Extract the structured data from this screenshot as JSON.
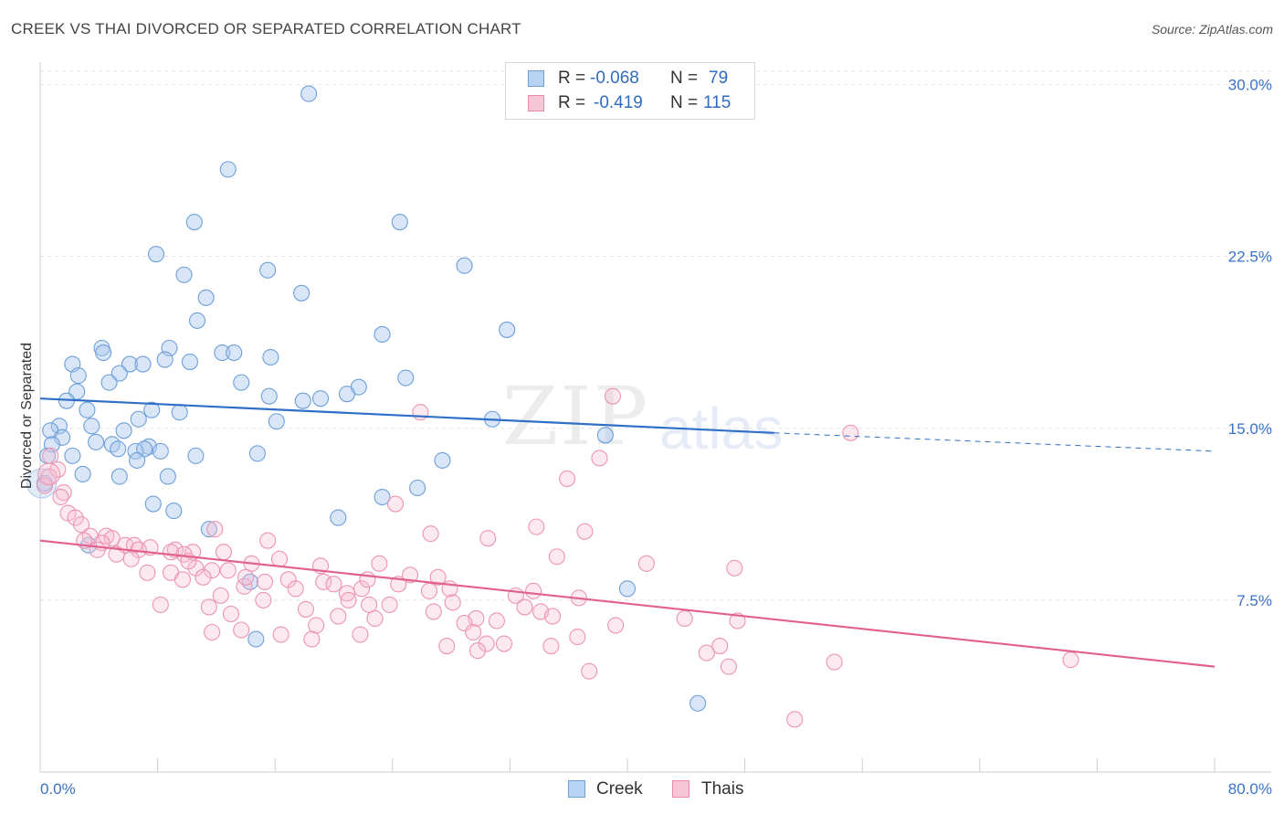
{
  "title": "CREEK VS THAI DIVORCED OR SEPARATED CORRELATION CHART",
  "source": "Source: ZipAtlas.com",
  "watermark": {
    "zip": "ZIP",
    "atlas": "atlas"
  },
  "legend": {
    "rows": [
      {
        "r_label": "R =",
        "r_value": "-0.068",
        "n_label": "N =",
        "n_value": "79",
        "color": "#6d9fd9"
      },
      {
        "r_label": "R =",
        "r_value": "-0.419",
        "n_label": "N =",
        "n_value": "115",
        "color": "#e88aab"
      }
    ]
  },
  "bottom_legend": {
    "creek": "Creek",
    "thais": "Thais"
  },
  "chart_data": {
    "type": "scatter",
    "title": "CREEK VS THAI DIVORCED OR SEPARATED CORRELATION CHART",
    "xlabel": "",
    "ylabel": "Divorced or Separated",
    "xlim": [
      0,
      80
    ],
    "ylim": [
      0,
      30.9
    ],
    "x_tick_labels": [
      "0.0%",
      "80.0%"
    ],
    "y_ticks": [
      7.5,
      15.0,
      22.5,
      30.0
    ],
    "y_tick_labels": [
      "7.5%",
      "15.0%",
      "22.5%",
      "30.0%"
    ],
    "grid": true,
    "legend_position": "top-center",
    "colors": {
      "creek": "#6d9fd9",
      "creek_line": "#2f6fc8",
      "thais": "#e88aab",
      "thais_line": "#e0608e"
    },
    "series": [
      {
        "name": "Creek",
        "r": -0.068,
        "n": 79,
        "trend": {
          "x": [
            0,
            50
          ],
          "y": [
            16.3,
            14.8
          ],
          "dashed_to": [
            80,
            14.0
          ]
        },
        "points": [
          [
            18.3,
            29.6
          ],
          [
            12.8,
            26.3
          ],
          [
            10.5,
            24.0
          ],
          [
            24.5,
            24.0
          ],
          [
            7.9,
            22.6
          ],
          [
            15.5,
            21.9
          ],
          [
            28.9,
            22.1
          ],
          [
            9.8,
            21.7
          ],
          [
            17.8,
            20.9
          ],
          [
            11.3,
            20.7
          ],
          [
            10.7,
            19.7
          ],
          [
            23.3,
            19.1
          ],
          [
            31.8,
            19.3
          ],
          [
            4.2,
            18.5
          ],
          [
            4.3,
            18.3
          ],
          [
            12.4,
            18.3
          ],
          [
            13.2,
            18.3
          ],
          [
            8.8,
            18.5
          ],
          [
            15.7,
            18.1
          ],
          [
            8.5,
            18.0
          ],
          [
            10.2,
            17.9
          ],
          [
            2.2,
            17.8
          ],
          [
            6.1,
            17.8
          ],
          [
            7.0,
            17.8
          ],
          [
            2.6,
            17.3
          ],
          [
            5.4,
            17.4
          ],
          [
            4.7,
            17.0
          ],
          [
            13.7,
            17.0
          ],
          [
            24.9,
            17.2
          ],
          [
            2.5,
            16.6
          ],
          [
            21.7,
            16.8
          ],
          [
            20.9,
            16.5
          ],
          [
            15.6,
            16.4
          ],
          [
            19.1,
            16.3
          ],
          [
            17.9,
            16.2
          ],
          [
            1.8,
            16.2
          ],
          [
            3.2,
            15.8
          ],
          [
            7.6,
            15.8
          ],
          [
            9.5,
            15.7
          ],
          [
            6.7,
            15.4
          ],
          [
            30.8,
            15.4
          ],
          [
            3.5,
            15.1
          ],
          [
            16.1,
            15.3
          ],
          [
            1.3,
            15.1
          ],
          [
            0.7,
            14.9
          ],
          [
            5.7,
            14.9
          ],
          [
            1.5,
            14.6
          ],
          [
            38.5,
            14.7
          ],
          [
            0.8,
            14.3
          ],
          [
            3.8,
            14.4
          ],
          [
            7.4,
            14.2
          ],
          [
            4.9,
            14.3
          ],
          [
            5.3,
            14.1
          ],
          [
            6.5,
            14.0
          ],
          [
            8.2,
            14.0
          ],
          [
            7.1,
            14.1
          ],
          [
            0.5,
            13.8
          ],
          [
            2.2,
            13.8
          ],
          [
            10.6,
            13.8
          ],
          [
            14.8,
            13.9
          ],
          [
            27.4,
            13.6
          ],
          [
            6.6,
            13.6
          ],
          [
            2.9,
            13.0
          ],
          [
            5.4,
            12.9
          ],
          [
            8.7,
            12.9
          ],
          [
            0.3,
            12.6
          ],
          [
            25.7,
            12.4
          ],
          [
            23.3,
            12.0
          ],
          [
            7.7,
            11.7
          ],
          [
            9.1,
            11.4
          ],
          [
            20.3,
            11.1
          ],
          [
            11.5,
            10.6
          ],
          [
            3.3,
            9.9
          ],
          [
            14.3,
            8.3
          ],
          [
            40.0,
            8.0
          ],
          [
            14.7,
            5.8
          ],
          [
            44.8,
            3.0
          ]
        ]
      },
      {
        "name": "Thais",
        "r": -0.419,
        "n": 115,
        "trend": {
          "x": [
            0,
            80
          ],
          "y": [
            10.1,
            4.6
          ]
        },
        "points": [
          [
            39.0,
            16.4
          ],
          [
            25.9,
            15.7
          ],
          [
            55.2,
            14.8
          ],
          [
            0.7,
            13.8
          ],
          [
            38.1,
            13.7
          ],
          [
            1.2,
            13.2
          ],
          [
            0.6,
            12.9
          ],
          [
            35.9,
            12.8
          ],
          [
            0.3,
            12.5
          ],
          [
            1.6,
            12.2
          ],
          [
            1.4,
            12.0
          ],
          [
            24.2,
            11.7
          ],
          [
            1.9,
            11.3
          ],
          [
            2.4,
            11.1
          ],
          [
            2.8,
            10.8
          ],
          [
            33.8,
            10.7
          ],
          [
            37.1,
            10.5
          ],
          [
            11.9,
            10.6
          ],
          [
            26.6,
            10.4
          ],
          [
            4.5,
            10.3
          ],
          [
            30.5,
            10.2
          ],
          [
            4.9,
            10.2
          ],
          [
            15.5,
            10.1
          ],
          [
            3.4,
            10.3
          ],
          [
            3.0,
            10.1
          ],
          [
            4.2,
            10.0
          ],
          [
            5.8,
            9.9
          ],
          [
            6.4,
            9.9
          ],
          [
            7.5,
            9.8
          ],
          [
            9.2,
            9.7
          ],
          [
            6.7,
            9.7
          ],
          [
            10.4,
            9.6
          ],
          [
            8.9,
            9.6
          ],
          [
            3.9,
            9.7
          ],
          [
            5.2,
            9.5
          ],
          [
            12.5,
            9.6
          ],
          [
            35.2,
            9.4
          ],
          [
            9.8,
            9.5
          ],
          [
            6.2,
            9.3
          ],
          [
            16.3,
            9.3
          ],
          [
            14.4,
            9.1
          ],
          [
            23.1,
            9.1
          ],
          [
            41.3,
            9.1
          ],
          [
            19.1,
            9.0
          ],
          [
            47.3,
            8.9
          ],
          [
            10.6,
            8.9
          ],
          [
            11.7,
            8.8
          ],
          [
            7.3,
            8.7
          ],
          [
            8.9,
            8.7
          ],
          [
            25.2,
            8.6
          ],
          [
            27.1,
            8.5
          ],
          [
            11.1,
            8.5
          ],
          [
            9.7,
            8.4
          ],
          [
            16.9,
            8.4
          ],
          [
            15.3,
            8.3
          ],
          [
            19.3,
            8.3
          ],
          [
            20.0,
            8.2
          ],
          [
            24.4,
            8.2
          ],
          [
            13.9,
            8.1
          ],
          [
            21.9,
            8.0
          ],
          [
            17.4,
            8.0
          ],
          [
            27.9,
            8.0
          ],
          [
            33.6,
            7.9
          ],
          [
            20.9,
            7.8
          ],
          [
            12.3,
            7.7
          ],
          [
            32.4,
            7.7
          ],
          [
            36.7,
            7.6
          ],
          [
            15.2,
            7.5
          ],
          [
            21.0,
            7.5
          ],
          [
            22.4,
            7.3
          ],
          [
            8.2,
            7.3
          ],
          [
            23.8,
            7.3
          ],
          [
            28.1,
            7.4
          ],
          [
            26.8,
            7.0
          ],
          [
            34.1,
            7.0
          ],
          [
            11.5,
            7.2
          ],
          [
            18.1,
            7.1
          ],
          [
            13.0,
            6.9
          ],
          [
            34.9,
            6.8
          ],
          [
            20.3,
            6.8
          ],
          [
            29.7,
            6.7
          ],
          [
            22.8,
            6.7
          ],
          [
            43.9,
            6.7
          ],
          [
            28.9,
            6.5
          ],
          [
            31.1,
            6.6
          ],
          [
            47.5,
            6.6
          ],
          [
            39.2,
            6.4
          ],
          [
            18.8,
            6.4
          ],
          [
            13.7,
            6.2
          ],
          [
            11.7,
            6.1
          ],
          [
            29.5,
            6.1
          ],
          [
            21.8,
            6.0
          ],
          [
            16.4,
            6.0
          ],
          [
            18.5,
            5.8
          ],
          [
            36.6,
            5.9
          ],
          [
            30.4,
            5.6
          ],
          [
            31.6,
            5.6
          ],
          [
            27.7,
            5.5
          ],
          [
            34.8,
            5.5
          ],
          [
            46.3,
            5.5
          ],
          [
            29.8,
            5.3
          ],
          [
            45.4,
            5.2
          ],
          [
            70.2,
            4.9
          ],
          [
            54.1,
            4.8
          ],
          [
            46.9,
            4.6
          ],
          [
            37.4,
            4.4
          ],
          [
            51.4,
            2.3
          ],
          [
            14.0,
            8.5
          ],
          [
            12.8,
            8.8
          ],
          [
            10.1,
            9.2
          ],
          [
            22.3,
            8.4
          ],
          [
            26.5,
            7.9
          ],
          [
            33.0,
            7.2
          ]
        ]
      }
    ]
  }
}
